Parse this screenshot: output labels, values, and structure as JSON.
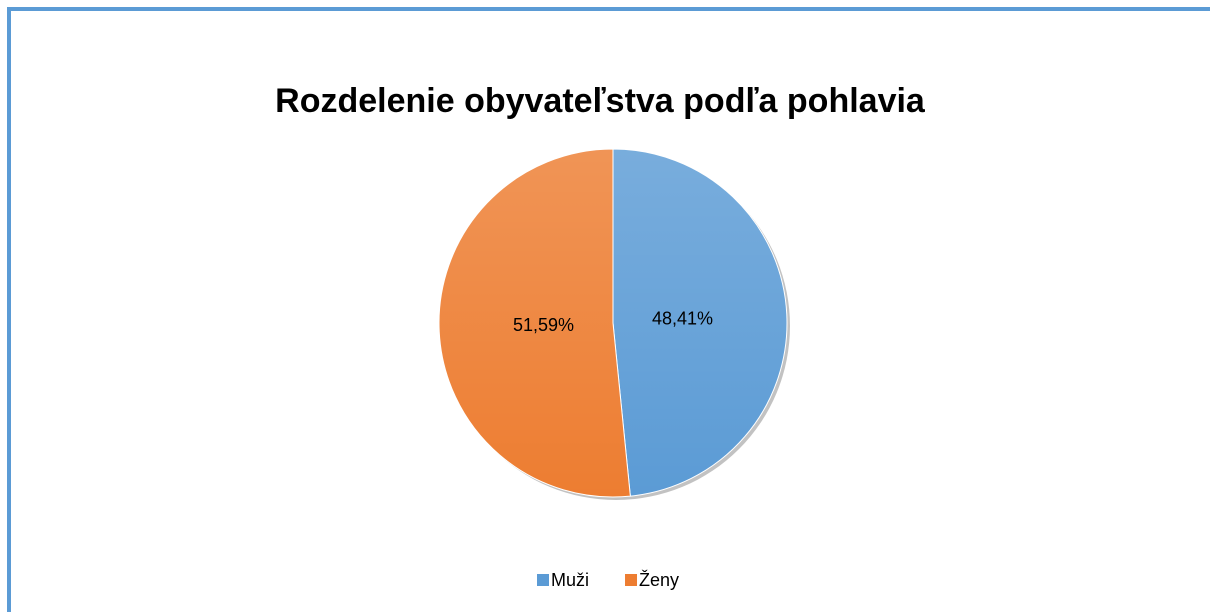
{
  "chart_data": {
    "type": "pie",
    "title": "Rozdelenie obyvateľstva podľa pohlavia",
    "categories": [
      "Muži",
      "Ženy"
    ],
    "values": [
      48.41,
      51.59
    ],
    "value_labels": [
      "48,41%",
      "51,59%"
    ],
    "colors": [
      "#5b9bd5",
      "#ed7d31"
    ],
    "legend": "bottom"
  }
}
